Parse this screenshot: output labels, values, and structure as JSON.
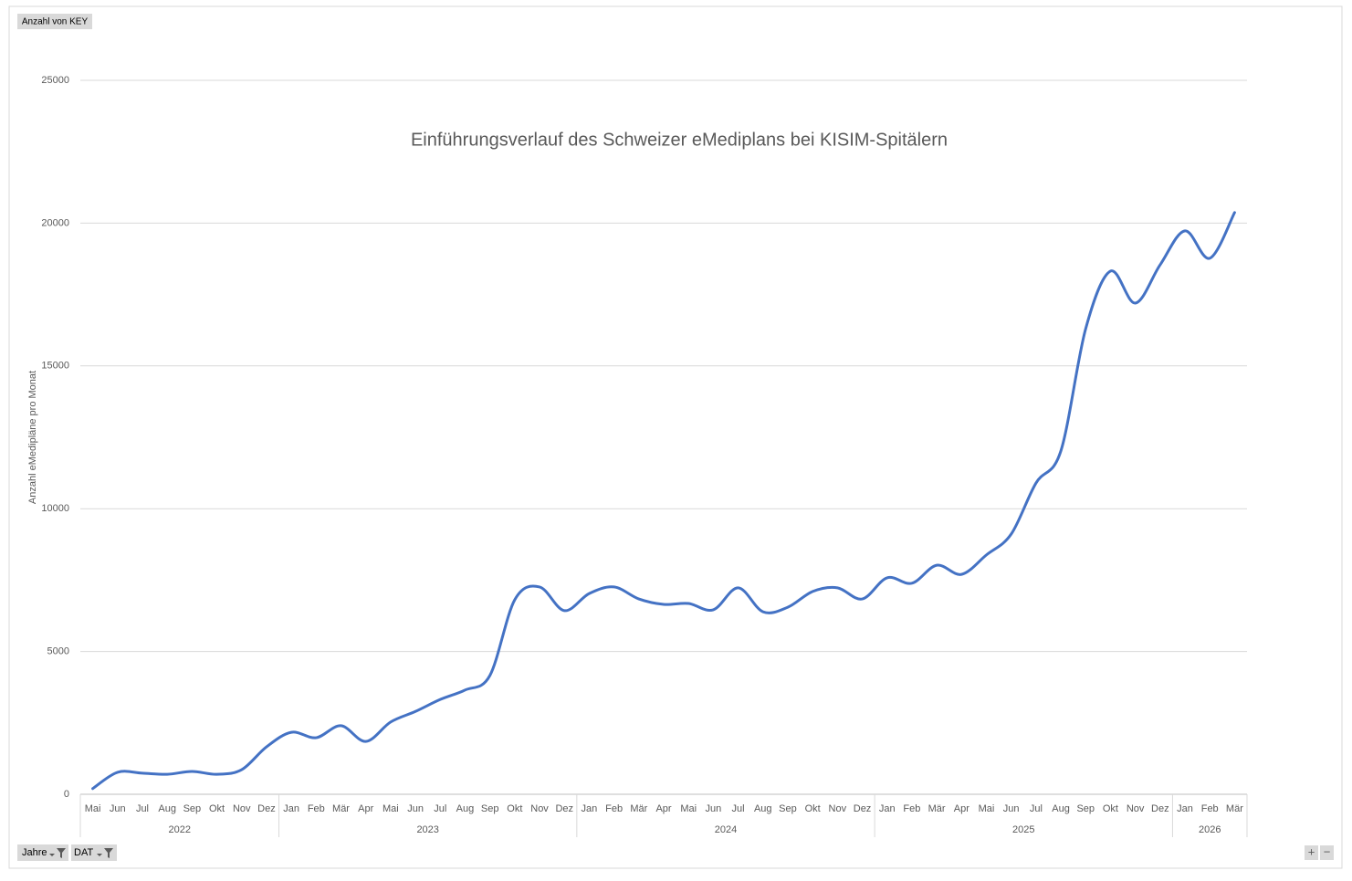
{
  "chart_data": {
    "type": "line",
    "title": "Einführungsverlauf des Schweizer eMediplans bei KISIM-Spitälern",
    "y_label": "Anzahl eMedipläne pro Monat",
    "field_button": "Anzahl von KEY",
    "filter_buttons": [
      "Jahre",
      "DAT"
    ],
    "zoom_buttons": [
      "+",
      "−"
    ],
    "groups": [
      {
        "name": "2022",
        "categories": [
          "Mai",
          "Jun",
          "Jul",
          "Aug",
          "Sep",
          "Okt",
          "Nov",
          "Dez"
        ]
      },
      {
        "name": "2023",
        "categories": [
          "Jan",
          "Feb",
          "Mär",
          "Apr",
          "Mai",
          "Jun",
          "Jul",
          "Aug",
          "Sep",
          "Okt",
          "Nov",
          "Dez"
        ]
      },
      {
        "name": "2024",
        "categories": [
          "Jan",
          "Feb",
          "Mär",
          "Apr",
          "Mai",
          "Jun",
          "Jul",
          "Aug",
          "Sep",
          "Okt",
          "Nov",
          "Dez"
        ]
      },
      {
        "name": "2025",
        "categories": [
          "Jan",
          "Feb",
          "Mär",
          "Apr",
          "Mai",
          "Jun",
          "Jul",
          "Aug",
          "Sep",
          "Okt",
          "Nov",
          "Dez"
        ]
      },
      {
        "name": "2026",
        "categories": [
          "Jan",
          "Feb",
          "Mär"
        ]
      }
    ],
    "values": [
      200,
      770,
      740,
      700,
      800,
      700,
      860,
      1660,
      2170,
      1980,
      2400,
      1850,
      2530,
      2900,
      3320,
      3650,
      4160,
      6810,
      7260,
      6430,
      7030,
      7260,
      6840,
      6650,
      6680,
      6460,
      7230,
      6390,
      6550,
      7100,
      7230,
      6840,
      7580,
      7390,
      8020,
      7700,
      8380,
      9110,
      10900,
      12020,
      16300,
      18320,
      17200,
      18540,
      19730,
      18770,
      20370
    ],
    "color": "#4472c4",
    "smooth": true,
    "ylim": [
      0,
      25000
    ],
    "yticks": [
      0,
      5000,
      10000,
      15000,
      20000,
      25000
    ],
    "grid": true
  }
}
